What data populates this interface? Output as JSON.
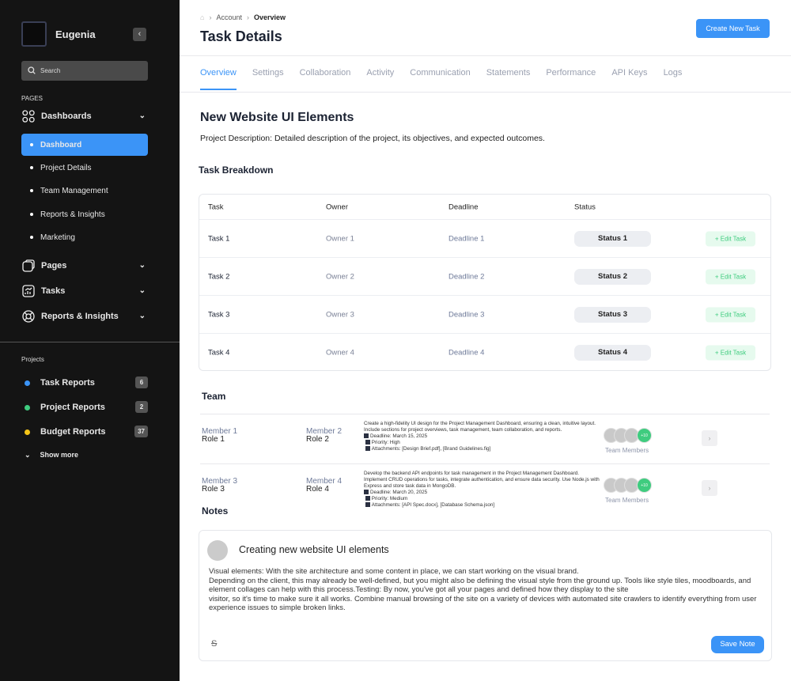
{
  "sidebar": {
    "user": "Eugenia",
    "search_placeholder": "Search",
    "pages_label": "PAGES",
    "nav": [
      {
        "label": "Dashboards",
        "icon": "grid-icon"
      },
      {
        "label": "Pages",
        "icon": "pages-icon"
      },
      {
        "label": "Tasks",
        "icon": "chart-icon"
      },
      {
        "label": "Reports & Insights",
        "icon": "lifebuoy-icon"
      }
    ],
    "sub": [
      "Dashboard",
      "Project Details",
      "Team Management",
      "Reports & Insights",
      "Marketing"
    ],
    "projects_label": "Projects",
    "projects": [
      {
        "label": "Task Reports",
        "count": "6",
        "color": "#3b94f7"
      },
      {
        "label": "Project Reports",
        "count": "2",
        "color": "#3fcc7f"
      },
      {
        "label": "Budget Reports",
        "count": "37",
        "color": "#f5c518"
      }
    ],
    "show_more": "Show more"
  },
  "header": {
    "breadcrumb": [
      "Account",
      "Overview"
    ],
    "title": "Task Details",
    "cta": "Create New Task"
  },
  "tabs": [
    "Overview",
    "Settings",
    "Collaboration",
    "Activity",
    "Communication",
    "Statements",
    "Performance",
    "API Keys",
    "Logs"
  ],
  "project": {
    "title": "New Website UI Elements",
    "description": "Project Description: Detailed description of the project, its objectives, and expected outcomes."
  },
  "breakdown": {
    "title": "Task Breakdown",
    "headers": [
      "Task",
      "Owner",
      "Deadline",
      "Status"
    ],
    "edit_label": "+ Edit Task",
    "rows": [
      [
        "Task 1",
        "Owner 1",
        "Deadline 1",
        "Status 1"
      ],
      [
        "Task 2",
        "Owner 2",
        "Deadline 2",
        "Status 2"
      ],
      [
        "Task 3",
        "Owner 3",
        "Deadline 3",
        "Status 3"
      ],
      [
        "Task 4",
        "Owner 4",
        "Deadline 4",
        "Status 4"
      ]
    ]
  },
  "team": {
    "title": "Team",
    "members_label": "Team Members",
    "more": "+10",
    "rows": [
      {
        "a": {
          "name": "Member 1",
          "role": "Role 1"
        },
        "b": {
          "name": "Member 2",
          "role": "Role 2"
        },
        "desc": "Create a high-fidelity UI design for the Project Management Dashboard, ensuring a clean, intuitive layout. Include sections for project overviews, task management, team collaboration, and reports.",
        "deadline": "Deadline: March 15, 2025",
        "priority": "Priority: High",
        "attachments": "Attachments: [Design Brief.pdf], [Brand Guidelines.fig]"
      },
      {
        "a": {
          "name": "Member 3",
          "role": "Role 3"
        },
        "b": {
          "name": "Member 4",
          "role": "Role 4"
        },
        "desc": "Develop the backend API endpoints for task management in the Project Management Dashboard. Implement CRUD operations for tasks, integrate authentication, and ensure data security. Use Node.js with Express and store task data in MongoDB.",
        "deadline": "Deadline: March 20, 2025",
        "priority": "Priority: Medium",
        "attachments": "Attachments: [API Spec.docx], [Database Schema.json]"
      }
    ]
  },
  "notes": {
    "title": "Notes",
    "note_title": "Creating new website UI elements",
    "body": "Visual elements: With the site architecture and some content in place, we can start working on the visual brand.\nDepending on the client, this may already be well-defined, but you might also be defining the visual style from the ground up. Tools like style tiles, moodboards, and element collages can help with this process.Testing: By now, you've got all your pages and defined how they display to the site\n visitor, so it's time to make sure it all works. Combine manual browsing of the site on a variety of devices with automated site crawlers to identify everything from user experience issues to simple broken links.",
    "strike_icon": "S",
    "save": "Save Note"
  }
}
